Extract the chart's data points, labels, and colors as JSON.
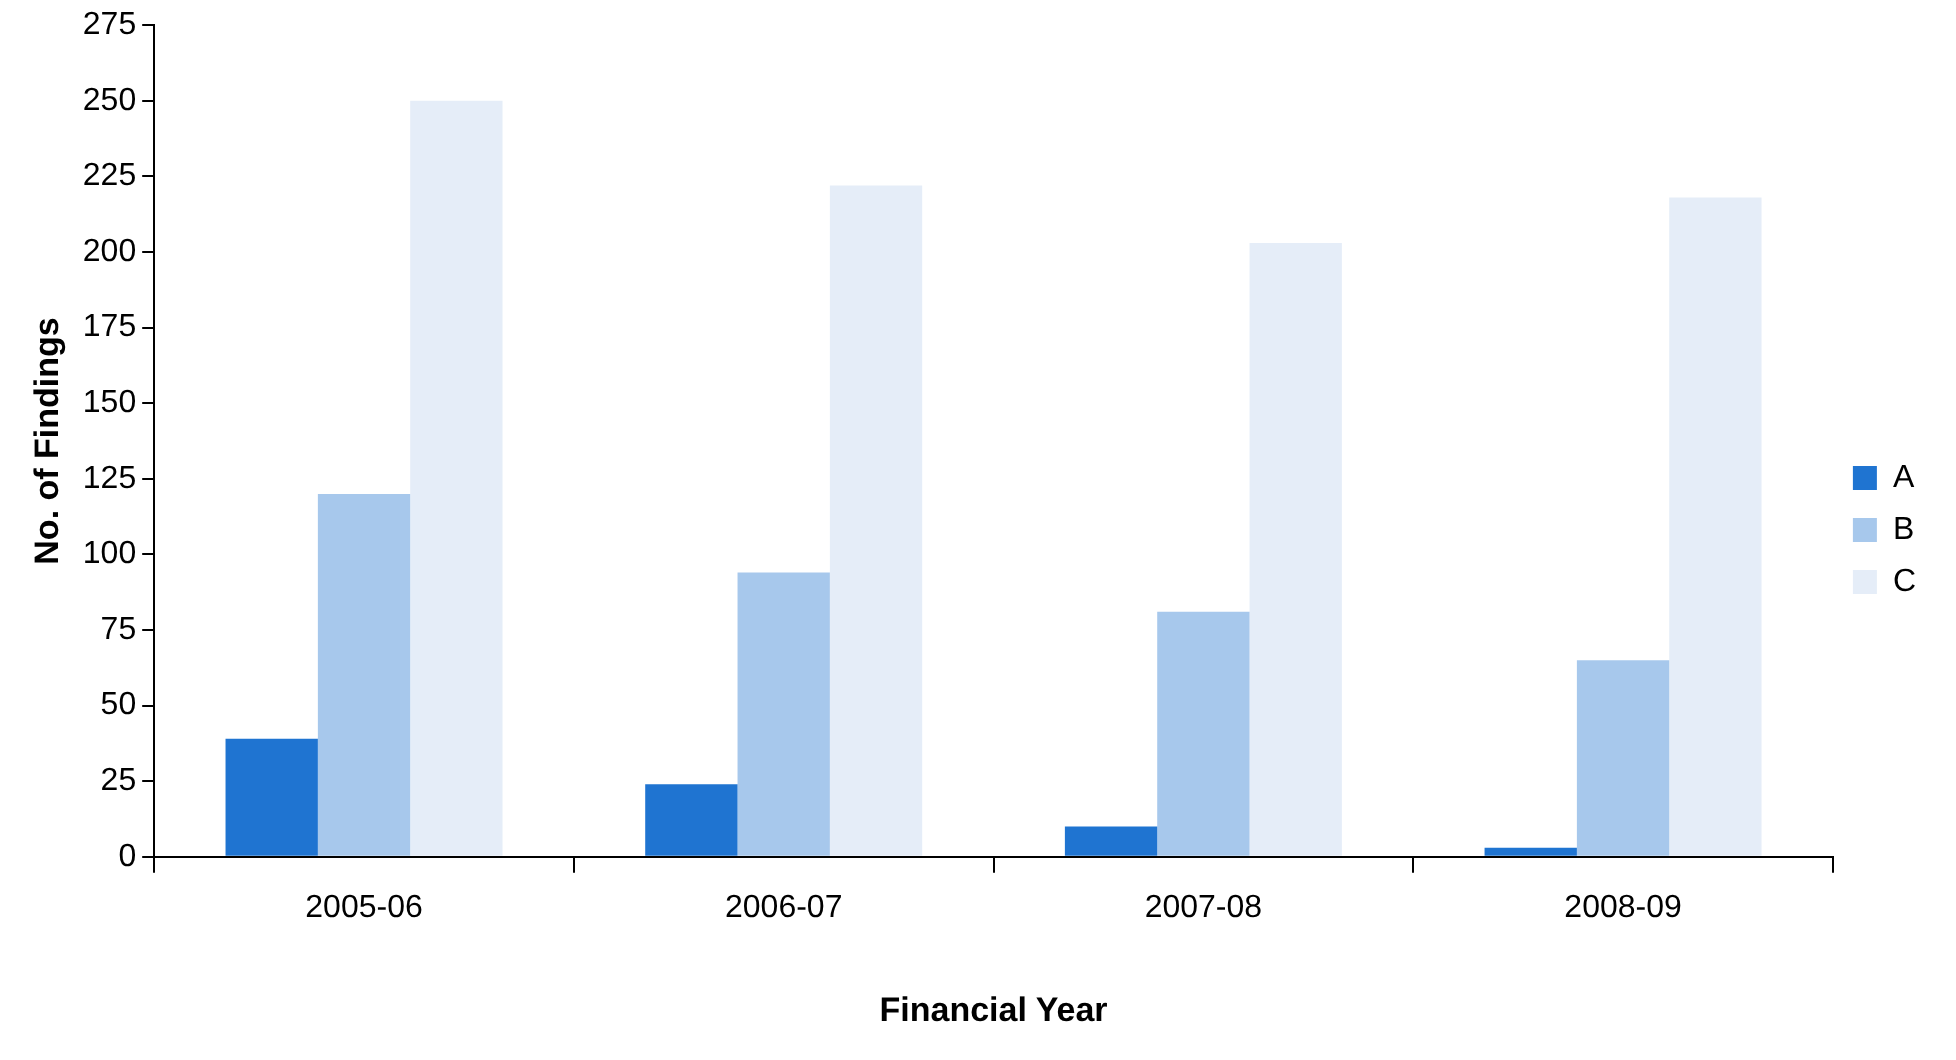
{
  "chart_data": {
    "type": "bar",
    "xlabel": "Financial Year",
    "ylabel": "No. of Findings",
    "categories": [
      "2005-06",
      "2006-07",
      "2007-08",
      "2008-09"
    ],
    "series": [
      {
        "name": "A",
        "color": "#1f74d1",
        "values": [
          39,
          24,
          10,
          3
        ]
      },
      {
        "name": "B",
        "color": "#a7c8ec",
        "values": [
          120,
          94,
          81,
          65
        ]
      },
      {
        "name": "C",
        "color": "#e5edf8",
        "values": [
          250,
          222,
          203,
          218
        ]
      }
    ],
    "ylim": [
      0,
      275
    ],
    "yticks": [
      0,
      25,
      50,
      75,
      100,
      125,
      150,
      175,
      200,
      225,
      250,
      275
    ],
    "grid": false,
    "legend": "right"
  }
}
